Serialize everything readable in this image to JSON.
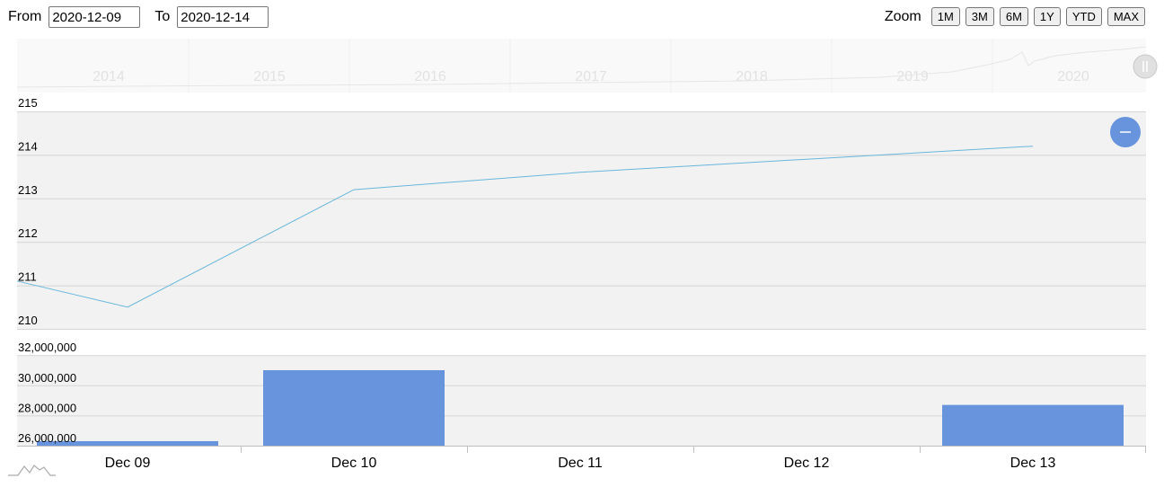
{
  "range": {
    "from_label": "From",
    "from_value": "2020-12-09",
    "to_label": "To",
    "to_value": "2020-12-14"
  },
  "zoom": {
    "label": "Zoom",
    "buttons": [
      "1M",
      "3M",
      "6M",
      "1Y",
      "YTD",
      "MAX"
    ]
  },
  "navigator": {
    "years": [
      "2014",
      "2015",
      "2016",
      "2017",
      "2018",
      "2019",
      "2020"
    ]
  },
  "colors": {
    "price_line": "#67b7dc",
    "volume_bar": "#6794dc",
    "plot_bg": "#f2f2f2",
    "zoom_out_button": "#6794dc"
  },
  "chart_data": [
    {
      "type": "line",
      "series": [
        {
          "x": [
            "2020-12-08",
            "2020-12-09",
            "2020-12-10",
            "2020-12-11",
            "2020-12-12",
            "2020-12-13"
          ],
          "values": [
            211.1,
            210.5,
            213.2,
            213.6,
            213.9,
            214.2
          ]
        }
      ],
      "ylim": [
        210,
        215
      ],
      "y_ticks": [
        "210",
        "211",
        "212",
        "213",
        "214",
        "215"
      ],
      "grid": true
    },
    {
      "type": "bar",
      "categories": [
        "Dec 09",
        "Dec 10",
        "Dec 11",
        "Dec 12",
        "Dec 13"
      ],
      "values": [
        26300000,
        31000000,
        null,
        null,
        28700000
      ],
      "ylim": [
        25500000,
        32000000
      ],
      "y_ticks": [
        "26,000,000",
        "28,000,000",
        "30,000,000",
        "32,000,000"
      ],
      "grid": true
    }
  ]
}
